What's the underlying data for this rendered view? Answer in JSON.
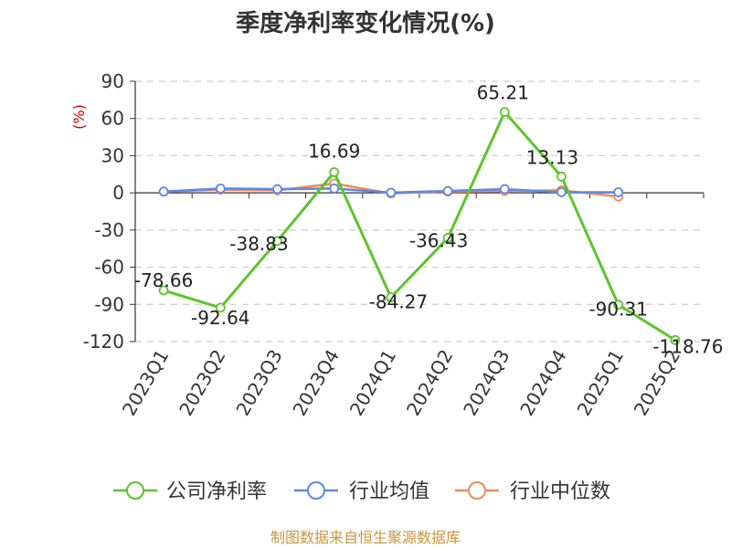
{
  "title": "季度净利率变化情况(%)",
  "unit_label": "(%)",
  "source": "制图数据来自恒生聚源数据库",
  "colors": {
    "company": "#5cc42c",
    "industry_avg": "#5b87e6",
    "industry_median": "#f08a5d",
    "grid": "#cccccc",
    "axis": "#333333",
    "source": "#c8963e"
  },
  "chart_data": {
    "type": "line",
    "title": "季度净利率变化情况(%)",
    "ylabel": "(%)",
    "xlabel": "",
    "ylim": [
      -120,
      90
    ],
    "yticks": [
      90,
      60,
      30,
      0,
      -30,
      -60,
      -90,
      -120
    ],
    "grid": true,
    "legend_position": "bottom",
    "categories": [
      "2023Q1",
      "2023Q2",
      "2023Q3",
      "2023Q4",
      "2024Q1",
      "2024Q2",
      "2024Q3",
      "2024Q4",
      "2025Q1",
      "2025Q2"
    ],
    "series": [
      {
        "name": "公司净利率",
        "key": "company",
        "values": [
          -78.66,
          -92.64,
          -38.83,
          16.69,
          -84.27,
          -36.43,
          65.21,
          13.13,
          -90.31,
          -118.76
        ],
        "labels": [
          "-78.66",
          "-92.64",
          "-38.83",
          "16.69",
          "-84.27",
          "-36.43",
          "65.21",
          "13.13",
          "-90.31",
          "-118.76"
        ]
      },
      {
        "name": "行业均值",
        "key": "industry_avg",
        "values": [
          1.0,
          3.5,
          3.0,
          3.5,
          0.2,
          1.5,
          3.0,
          0.5,
          0.5,
          null
        ]
      },
      {
        "name": "行业中位数",
        "key": "industry_median",
        "values": [
          1.0,
          2.5,
          2.0,
          7.5,
          -0.5,
          1.0,
          1.5,
          2.0,
          -3.0,
          null
        ]
      }
    ]
  }
}
